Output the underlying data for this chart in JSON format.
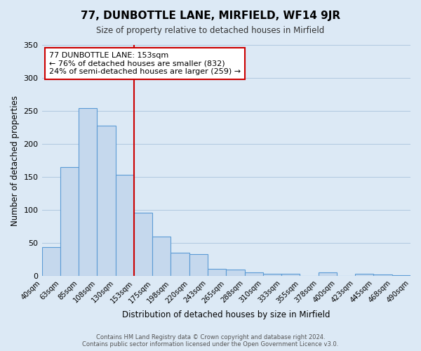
{
  "title": "77, DUNBOTTLE LANE, MIRFIELD, WF14 9JR",
  "subtitle": "Size of property relative to detached houses in Mirfield",
  "xlabel": "Distribution of detached houses by size in Mirfield",
  "ylabel": "Number of detached properties",
  "bin_labels": [
    "40sqm",
    "63sqm",
    "85sqm",
    "108sqm",
    "130sqm",
    "153sqm",
    "175sqm",
    "198sqm",
    "220sqm",
    "243sqm",
    "265sqm",
    "288sqm",
    "310sqm",
    "333sqm",
    "355sqm",
    "378sqm",
    "400sqm",
    "423sqm",
    "445sqm",
    "468sqm",
    "490sqm"
  ],
  "bar_values": [
    44,
    165,
    254,
    228,
    153,
    96,
    60,
    35,
    33,
    11,
    10,
    5,
    3,
    3,
    0,
    6,
    0,
    3,
    2,
    1
  ],
  "bar_color": "#c5d8ed",
  "bar_edge_color": "#5b9bd5",
  "vline_position": 5,
  "vline_color": "#cc0000",
  "ylim": [
    0,
    350
  ],
  "yticks": [
    0,
    50,
    100,
    150,
    200,
    250,
    300,
    350
  ],
  "annotation_title": "77 DUNBOTTLE LANE: 153sqm",
  "annotation_line1": "← 76% of detached houses are smaller (832)",
  "annotation_line2": "24% of semi-detached houses are larger (259) →",
  "annotation_box_color": "#ffffff",
  "annotation_box_edge_color": "#cc0000",
  "footer_line1": "Contains HM Land Registry data © Crown copyright and database right 2024.",
  "footer_line2": "Contains public sector information licensed under the Open Government Licence v3.0.",
  "bg_color": "#dce9f5",
  "grid_color": "#b0c8e0"
}
